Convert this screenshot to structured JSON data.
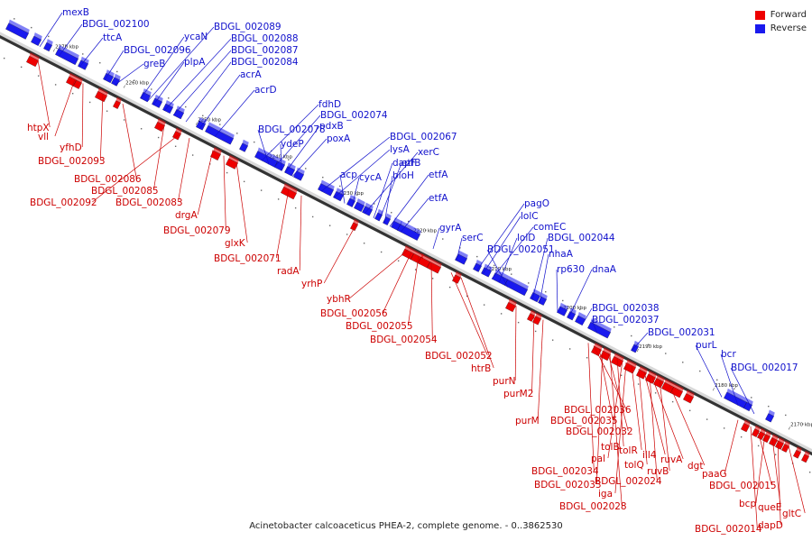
{
  "legend": {
    "forward_label": "Forward",
    "reverse_label": "Reverse",
    "forward_color": "#ee0000",
    "reverse_color": "#1a1aee"
  },
  "caption": "Acinetobacter calcoaceticus PHEA-2, complete genome. - 0..3862530",
  "ticks": [
    "2270 kbp",
    "2260 kbp",
    "2250 kbp",
    "2240 kbp",
    "2230 kbp",
    "2220 kbp",
    "2210 kbp",
    "2200 kbp",
    "2190 kbp",
    "2180 kbp",
    "2170 kbp"
  ],
  "reverse_genes": [
    "mexB",
    "BDGL_002100",
    "ttcA",
    "BDGL_002096",
    "greB",
    "ycaN",
    "BDGL_002089",
    "plpA",
    "BDGL_002088",
    "BDGL_002087",
    "BDGL_002084",
    "acrA",
    "acrD",
    "fdhD",
    "BDGL_002078",
    "BDGL_002074",
    "ydeP",
    "pdxB",
    "poxA",
    "BDGL_002067",
    "lysA",
    "acp",
    "cycA",
    "xerC",
    "dapF",
    "etfB",
    "bioH",
    "etfA",
    "etfA",
    "gyrA",
    "serC",
    "pagO",
    "lolC",
    "comEC",
    "lolD",
    "BDGL_002051",
    "BDGL_002044",
    "nhaA",
    "rp630",
    "dnaA",
    "BDGL_002038",
    "BDGL_002037",
    "BDGL_002031",
    "purL",
    "bcr",
    "BDGL_002017"
  ],
  "forward_genes": [
    "htpX",
    "vll",
    "yfhD",
    "BDGL_002093",
    "BDGL_002086",
    "BDGL_002085",
    "BDGL_002092",
    "BDGL_002083",
    "drgA",
    "BDGL_002079",
    "glxK",
    "BDGL_002071",
    "radA",
    "yrhP",
    "ybhR",
    "BDGL_002056",
    "BDGL_002055",
    "BDGL_002054",
    "BDGL_002052",
    "htrB",
    "purN",
    "purM2",
    "purM",
    "BDGL_002036",
    "BDGL_002035",
    "BDGL_002032",
    "tolB",
    "pal",
    "tolR",
    "ill4",
    "ruvA",
    "tolQ",
    "ruvB",
    "dgt",
    "BDGL_002034",
    "BDGL_002024",
    "BDGL_002033",
    "iga",
    "BDGL_002028",
    "paaG",
    "BDGL_002015",
    "bcp",
    "queE",
    "gltC",
    "dapD",
    "BDGL_002014"
  ]
}
